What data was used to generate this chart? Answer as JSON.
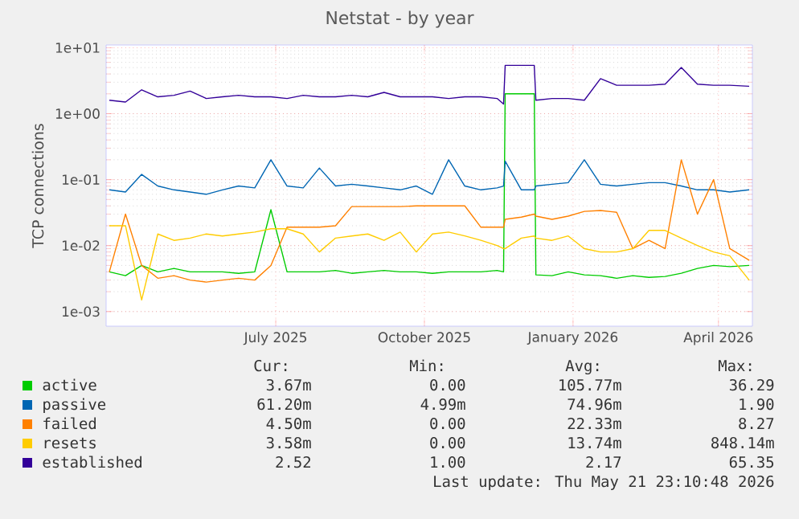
{
  "chart_data": {
    "type": "line",
    "title": "Netstat - by year",
    "ylabel": "TCP connections",
    "log": "y",
    "grid": true,
    "legend": "bottom",
    "marker": "none",
    "line_style": "solid",
    "xlim": [
      "2025-03-18",
      "2026-04-22"
    ],
    "ylim": [
      0.0006,
      11
    ],
    "xticks": [
      {
        "value": "2025-07-01",
        "label": "July 2025"
      },
      {
        "value": "2025-10-01",
        "label": "October 2025"
      },
      {
        "value": "2026-01-01",
        "label": "January 2026"
      },
      {
        "value": "2026-04-01",
        "label": "April 2026"
      }
    ],
    "yticks": [
      {
        "value": 0.001,
        "label": "1e-03"
      },
      {
        "value": 0.01,
        "label": "1e-02"
      },
      {
        "value": 0.1,
        "label": "1e-01"
      },
      {
        "value": 1,
        "label": "1e+00"
      },
      {
        "value": 10,
        "label": "1e+01"
      }
    ],
    "x": [
      "2025-03-20",
      "2025-03-30",
      "2025-04-09",
      "2025-04-19",
      "2025-04-29",
      "2025-05-09",
      "2025-05-19",
      "2025-05-29",
      "2025-06-08",
      "2025-06-18",
      "2025-06-28",
      "2025-07-08",
      "2025-07-18",
      "2025-07-28",
      "2025-08-07",
      "2025-08-17",
      "2025-08-27",
      "2025-09-06",
      "2025-09-16",
      "2025-09-26",
      "2025-10-06",
      "2025-10-16",
      "2025-10-26",
      "2025-11-05",
      "2025-11-15",
      "2025-11-19",
      "2025-11-20",
      "2025-11-30",
      "2025-12-08",
      "2025-12-09",
      "2025-12-19",
      "2025-12-29",
      "2026-01-08",
      "2026-01-18",
      "2026-01-28",
      "2026-02-07",
      "2026-02-17",
      "2026-02-27",
      "2026-03-09",
      "2026-03-19",
      "2026-03-29",
      "2026-04-08",
      "2026-04-20"
    ],
    "series": [
      {
        "name": "active",
        "color": "#00cc00",
        "values": [
          0.004,
          0.0035,
          0.005,
          0.004,
          0.0045,
          0.004,
          0.004,
          0.004,
          0.0038,
          0.004,
          0.035,
          0.004,
          0.004,
          0.004,
          0.0042,
          0.0038,
          0.004,
          0.0042,
          0.004,
          0.004,
          0.0038,
          0.004,
          0.004,
          0.004,
          0.0042,
          0.004,
          2.0,
          2.0,
          2.0,
          0.0036,
          0.0035,
          0.004,
          0.0036,
          0.0035,
          0.0032,
          0.0035,
          0.0033,
          0.0034,
          0.0038,
          0.0045,
          0.005,
          0.0048,
          0.005
        ]
      },
      {
        "name": "passive",
        "color": "#0066b3",
        "values": [
          0.07,
          0.065,
          0.12,
          0.08,
          0.07,
          0.065,
          0.06,
          0.07,
          0.08,
          0.075,
          0.2,
          0.08,
          0.075,
          0.15,
          0.08,
          0.085,
          0.08,
          0.075,
          0.07,
          0.08,
          0.06,
          0.2,
          0.08,
          0.07,
          0.075,
          0.08,
          0.19,
          0.07,
          0.07,
          0.08,
          0.085,
          0.09,
          0.2,
          0.085,
          0.08,
          0.085,
          0.09,
          0.09,
          0.08,
          0.07,
          0.07,
          0.065,
          0.07
        ]
      },
      {
        "name": "failed",
        "color": "#ff8000",
        "values": [
          0.004,
          0.03,
          0.005,
          0.0032,
          0.0035,
          0.003,
          0.0028,
          0.003,
          0.0032,
          0.003,
          0.005,
          0.019,
          0.019,
          0.019,
          0.02,
          0.039,
          0.039,
          0.039,
          0.039,
          0.04,
          0.04,
          0.04,
          0.04,
          0.019,
          0.019,
          0.019,
          0.025,
          0.027,
          0.03,
          0.028,
          0.025,
          0.028,
          0.033,
          0.034,
          0.032,
          0.009,
          0.012,
          0.009,
          0.2,
          0.03,
          0.1,
          0.009,
          0.006
        ]
      },
      {
        "name": "resets",
        "color": "#ffcc00",
        "values": [
          0.02,
          0.02,
          0.0015,
          0.015,
          0.012,
          0.013,
          0.015,
          0.014,
          0.015,
          0.016,
          0.018,
          0.018,
          0.015,
          0.008,
          0.013,
          0.014,
          0.015,
          0.012,
          0.016,
          0.008,
          0.015,
          0.016,
          0.014,
          0.012,
          0.01,
          0.009,
          0.009,
          0.013,
          0.014,
          0.013,
          0.012,
          0.014,
          0.009,
          0.008,
          0.008,
          0.009,
          0.017,
          0.017,
          0.013,
          0.01,
          0.008,
          0.007,
          0.003
        ]
      },
      {
        "name": "established",
        "color": "#330099",
        "values": [
          1.6,
          1.5,
          2.3,
          1.8,
          1.9,
          2.2,
          1.7,
          1.8,
          1.9,
          1.8,
          1.8,
          1.7,
          1.9,
          1.8,
          1.8,
          1.9,
          1.8,
          2.1,
          1.8,
          1.8,
          1.8,
          1.7,
          1.8,
          1.8,
          1.7,
          1.4,
          5.4,
          5.4,
          5.4,
          1.6,
          1.7,
          1.7,
          1.6,
          3.4,
          2.7,
          2.7,
          2.7,
          2.8,
          5.0,
          2.8,
          2.7,
          2.7,
          2.6
        ]
      }
    ],
    "annotations": [
      "Cur:",
      "Min:",
      "Avg:",
      "Max:",
      "3.67m",
      "0.00",
      "105.77m",
      "36.29",
      "61.20m",
      "4.99m",
      "74.96m",
      "1.90",
      "4.50m",
      "0.00",
      "22.33m",
      "8.27",
      "3.58m",
      "0.00",
      "13.74m",
      "848.14m",
      "2.52",
      "1.00",
      "2.17",
      "65.35",
      "Last update: Thu May 21 23:10:48 2026"
    ]
  }
}
